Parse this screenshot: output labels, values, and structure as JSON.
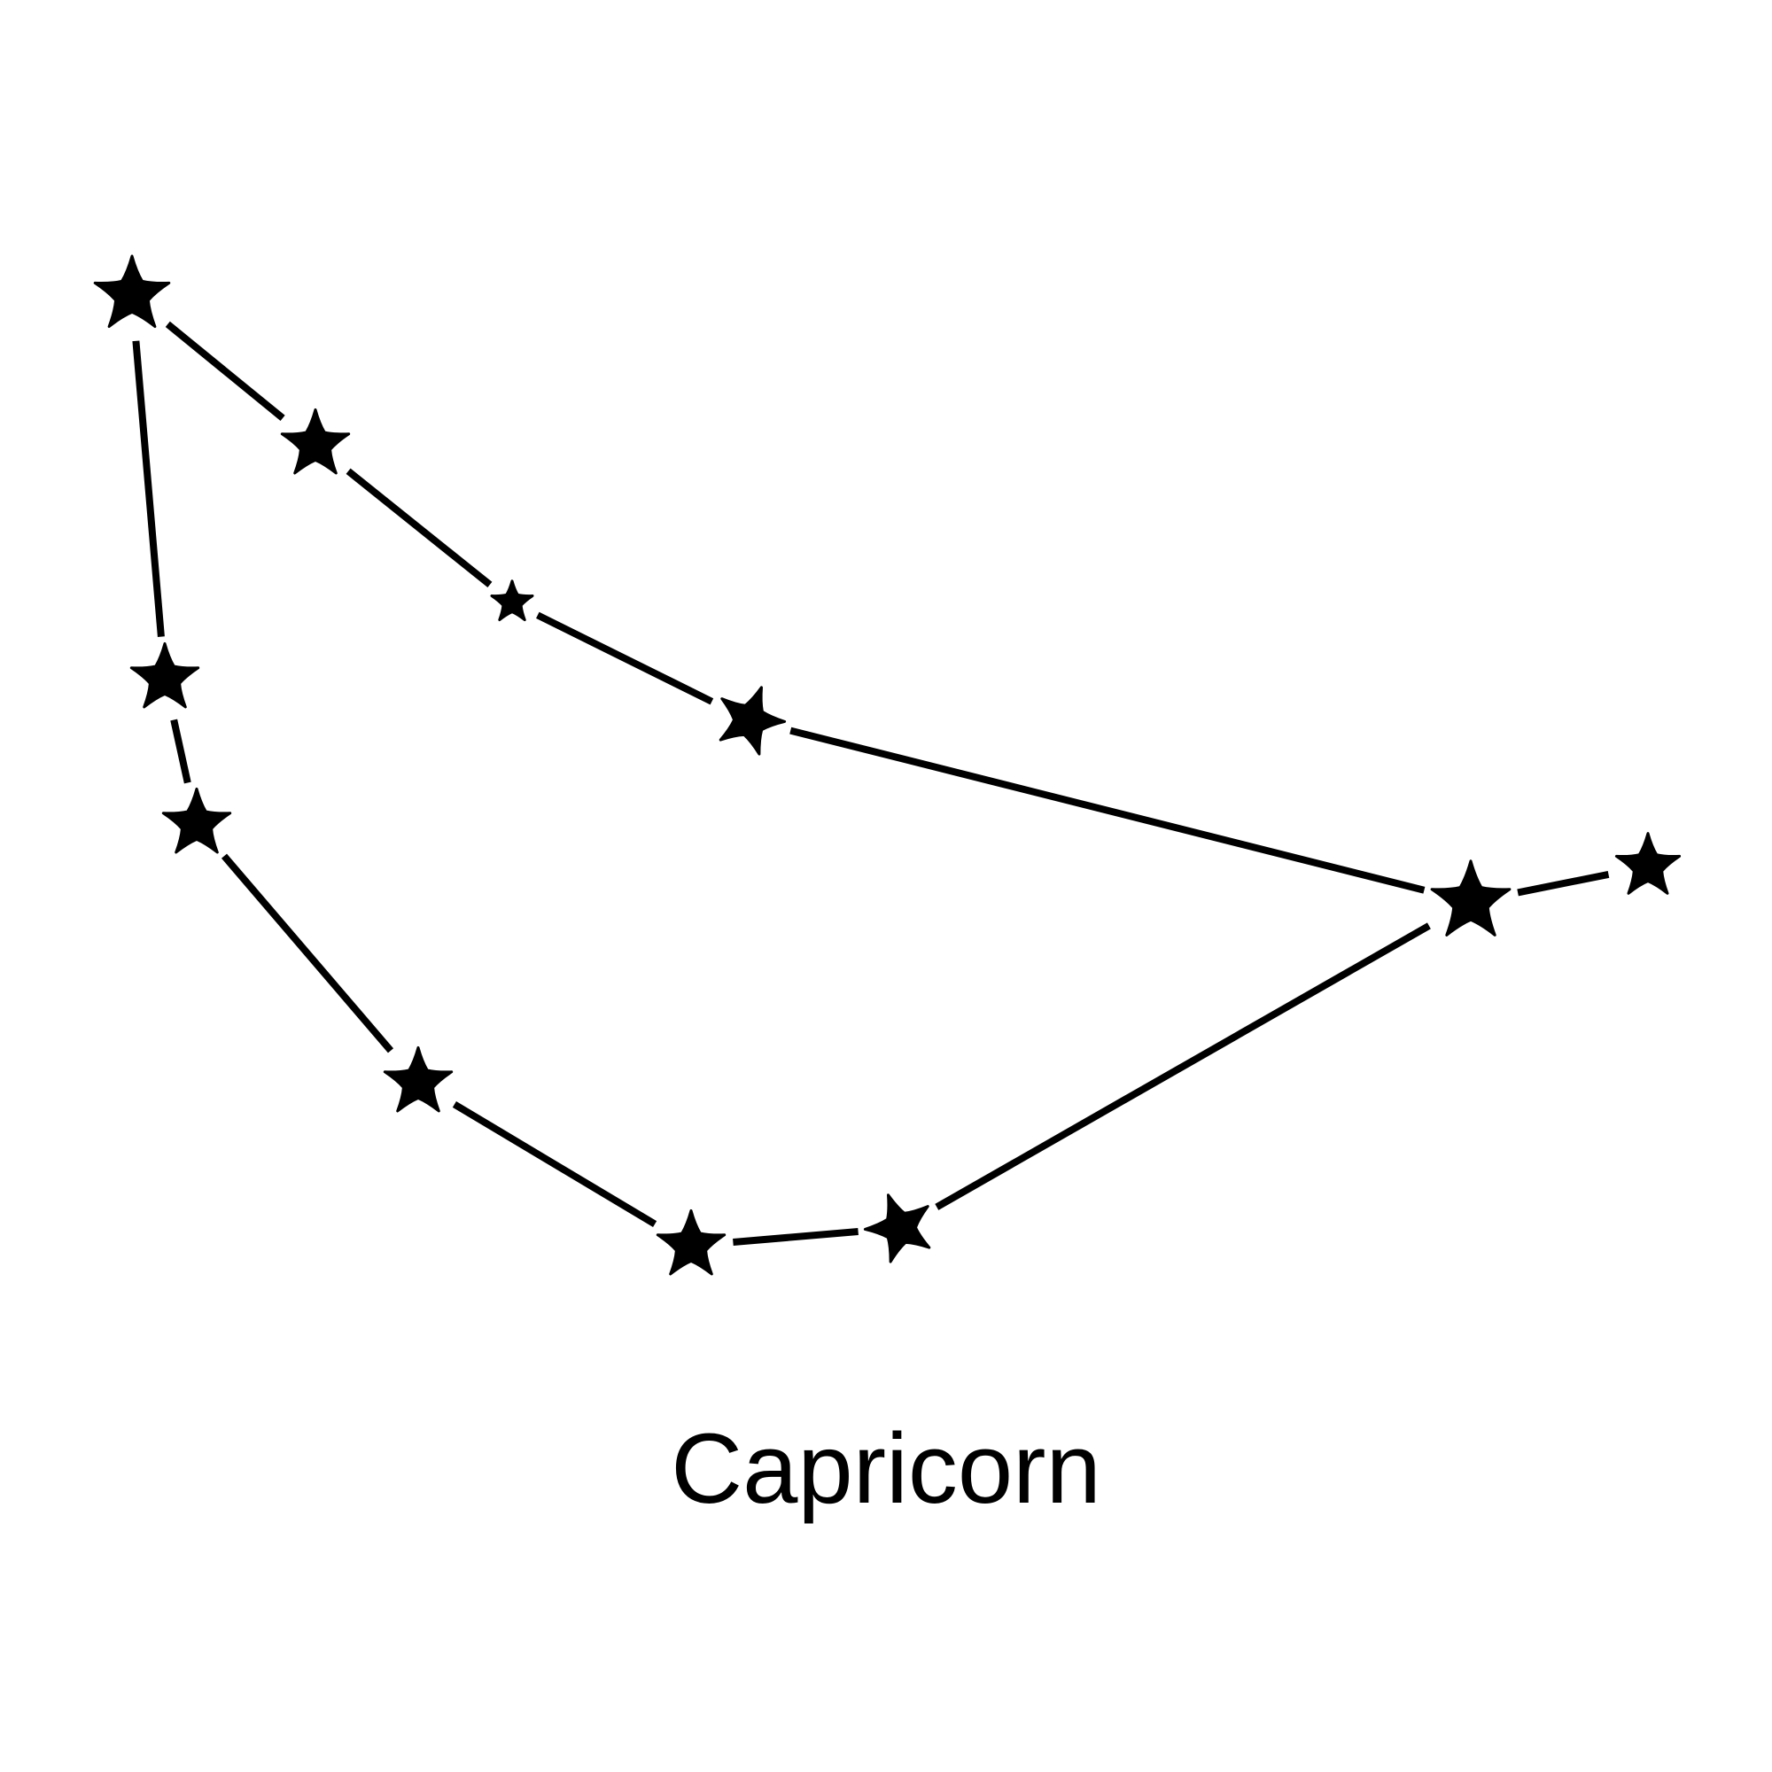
{
  "title": "Capricorn",
  "colors": {
    "background": "#ffffff",
    "ink": "#000000"
  },
  "stars": [
    {
      "id": "star-1",
      "icon": "star-icon",
      "relative_size": 1.0
    },
    {
      "id": "star-2",
      "icon": "star-icon",
      "relative_size": 0.9
    },
    {
      "id": "star-3",
      "icon": "star-icon",
      "relative_size": 0.55
    },
    {
      "id": "star-4",
      "icon": "star-icon",
      "relative_size": 0.9
    },
    {
      "id": "star-5",
      "icon": "star-icon",
      "relative_size": 1.05
    },
    {
      "id": "star-6",
      "icon": "star-icon",
      "relative_size": 0.85
    },
    {
      "id": "star-7",
      "icon": "star-icon",
      "relative_size": 0.9
    },
    {
      "id": "star-8",
      "icon": "star-icon",
      "relative_size": 0.9
    },
    {
      "id": "star-9",
      "icon": "star-icon",
      "relative_size": 0.9
    },
    {
      "id": "star-10",
      "icon": "star-icon",
      "relative_size": 0.9
    },
    {
      "id": "star-11",
      "icon": "star-icon",
      "relative_size": 0.9
    }
  ],
  "connections": [
    [
      "star-1",
      "star-2"
    ],
    [
      "star-2",
      "star-3"
    ],
    [
      "star-3",
      "star-4"
    ],
    [
      "star-4",
      "star-5"
    ],
    [
      "star-5",
      "star-6"
    ],
    [
      "star-5",
      "star-7"
    ],
    [
      "star-7",
      "star-8"
    ],
    [
      "star-8",
      "star-9"
    ],
    [
      "star-9",
      "star-10"
    ],
    [
      "star-10",
      "star-11"
    ],
    [
      "star-11",
      "star-1"
    ]
  ]
}
